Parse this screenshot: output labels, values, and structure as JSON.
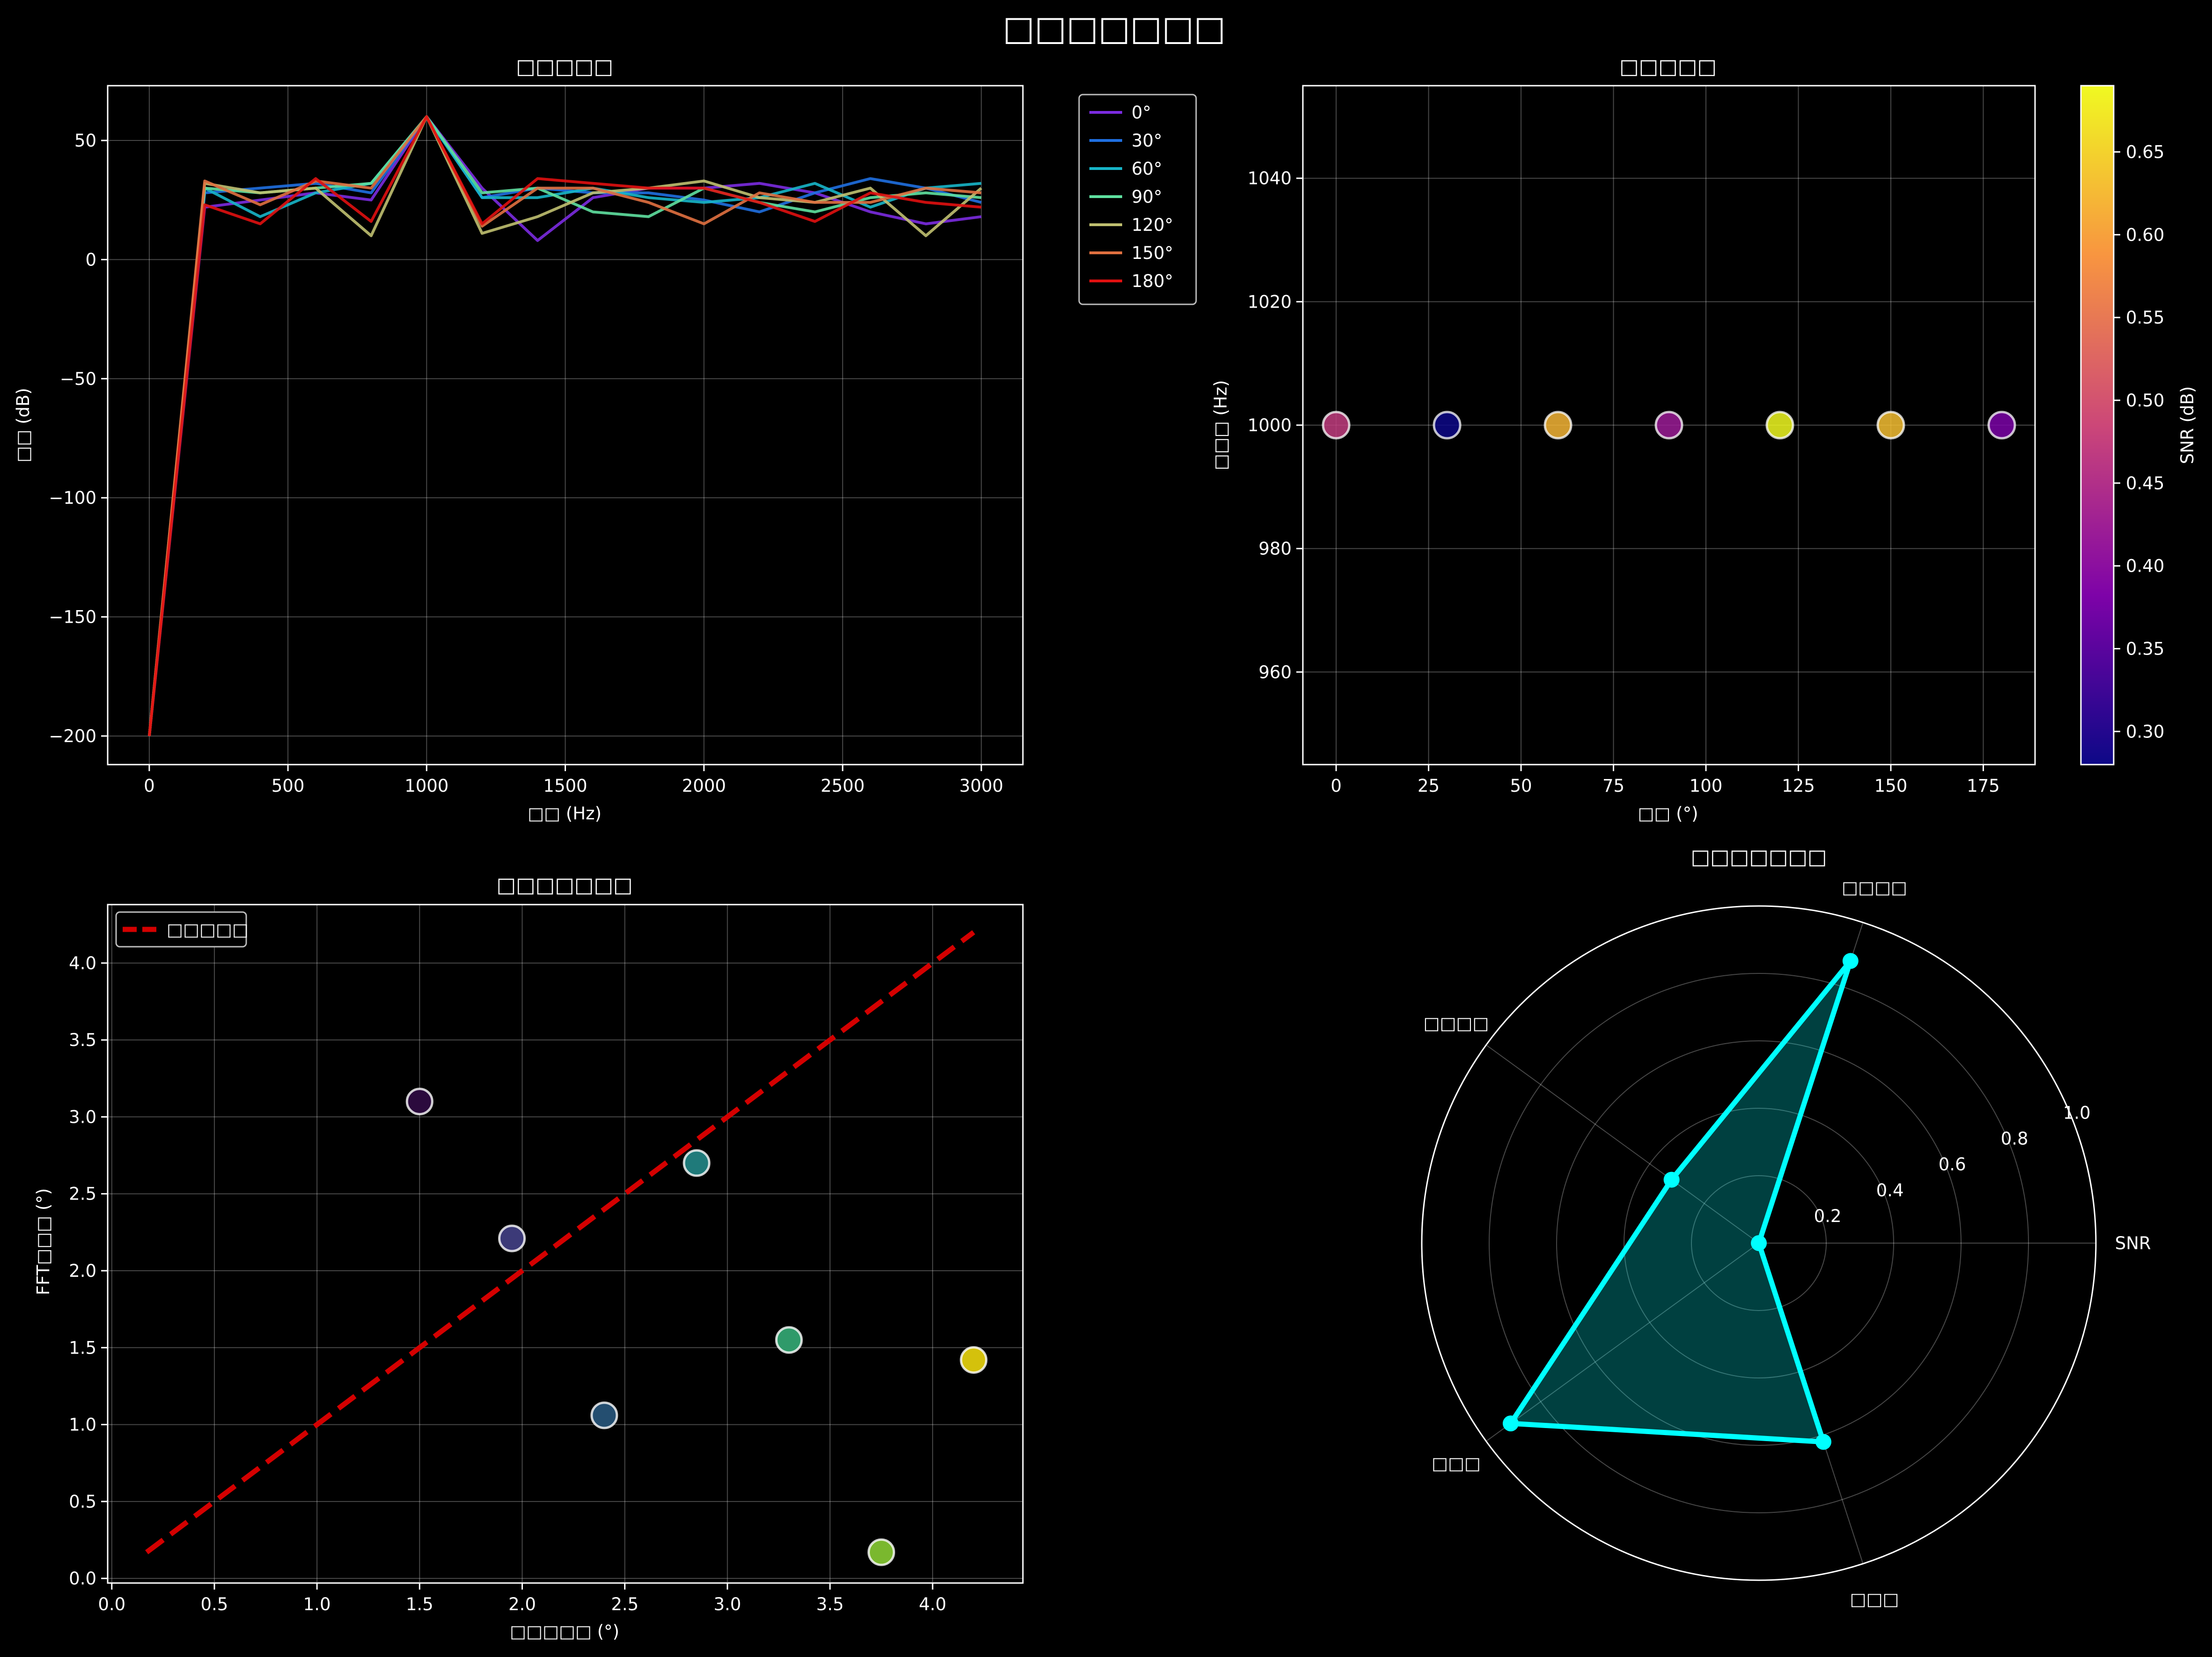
{
  "figure": {
    "suptitle": "□□□□□□□",
    "colors": {
      "background": "#000000",
      "text": "#ffffff",
      "grid": "#ffffff"
    }
  },
  "chart_data": [
    {
      "id": "spectrum",
      "type": "line",
      "title": "□□□□□",
      "xlabel": "□□ (Hz)",
      "ylabel": "□□ (dB)",
      "xlim": [
        -150,
        3150
      ],
      "ylim": [
        -212,
        73
      ],
      "xticks": [
        0,
        500,
        1000,
        1500,
        2000,
        2500,
        3000
      ],
      "yticks": [
        -200,
        -150,
        -100,
        -50,
        0,
        50
      ],
      "grid": true,
      "legend_position": "outside-upper-right",
      "x": [
        0,
        200,
        400,
        600,
        800,
        1000,
        1200,
        1400,
        1600,
        1800,
        2000,
        2200,
        2400,
        2600,
        2800,
        3000
      ],
      "series": [
        {
          "name": "0°",
          "color": "#7b2be0",
          "values": [
            -200,
            22,
            25,
            28,
            25,
            60,
            30,
            8,
            26,
            30,
            30,
            32,
            28,
            20,
            15,
            18
          ]
        },
        {
          "name": "30°",
          "color": "#1f6fe0",
          "values": [
            -200,
            28,
            30,
            32,
            28,
            60,
            26,
            30,
            28,
            28,
            25,
            20,
            28,
            34,
            30,
            24
          ]
        },
        {
          "name": "60°",
          "color": "#17b5c8",
          "values": [
            -200,
            30,
            18,
            28,
            32,
            60,
            26,
            26,
            30,
            26,
            24,
            26,
            32,
            22,
            30,
            32
          ]
        },
        {
          "name": "90°",
          "color": "#5fe0a0",
          "values": [
            -200,
            30,
            28,
            30,
            32,
            60,
            28,
            30,
            20,
            18,
            30,
            24,
            20,
            26,
            28,
            26
          ]
        },
        {
          "name": "120°",
          "color": "#c0c070",
          "values": [
            -200,
            32,
            28,
            30,
            10,
            60,
            11,
            18,
            28,
            30,
            33,
            26,
            24,
            30,
            10,
            30
          ]
        },
        {
          "name": "150°",
          "color": "#e07040",
          "values": [
            -200,
            33,
            23,
            33,
            30,
            60,
            14,
            30,
            30,
            24,
            15,
            28,
            24,
            24,
            30,
            28
          ]
        },
        {
          "name": "180°",
          "color": "#e01010",
          "values": [
            -200,
            23,
            15,
            34,
            16,
            60,
            15,
            34,
            32,
            30,
            30,
            24,
            16,
            28,
            24,
            22
          ]
        }
      ]
    },
    {
      "id": "scatter-angle",
      "type": "scatter",
      "title": "□□□□□",
      "xlabel": "□□ (°)",
      "ylabel": "□□□ (Hz)",
      "xlim": [
        -9,
        189
      ],
      "ylim": [
        945,
        1055
      ],
      "xticks": [
        0,
        25,
        50,
        75,
        100,
        125,
        150,
        175
      ],
      "yticks": [
        960,
        980,
        1000,
        1020,
        1040
      ],
      "grid": true,
      "colorbar": {
        "label": "SNR (dB)",
        "min": 0.28,
        "max": 0.69,
        "ticks": [
          0.3,
          0.35,
          0.4,
          0.45,
          0.5,
          0.55,
          0.6,
          0.65
        ]
      },
      "points": [
        {
          "x": 0,
          "y": 1000,
          "snr": 0.47
        },
        {
          "x": 30,
          "y": 1000,
          "snr": 0.28
        },
        {
          "x": 60,
          "y": 1000,
          "snr": 0.62
        },
        {
          "x": 90,
          "y": 1000,
          "snr": 0.42
        },
        {
          "x": 120,
          "y": 1000,
          "snr": 0.69
        },
        {
          "x": 150,
          "y": 1000,
          "snr": 0.63
        },
        {
          "x": 180,
          "y": 1000,
          "snr": 0.38
        }
      ]
    },
    {
      "id": "phase-compare",
      "type": "scatter",
      "title": "□□□□□□□",
      "xlabel": "□□□□□ (°)",
      "ylabel": "FFT□□□ (°)",
      "xlim": [
        -0.02,
        4.44
      ],
      "ylim": [
        -0.03,
        4.38
      ],
      "xticks": [
        0.0,
        0.5,
        1.0,
        1.5,
        2.0,
        2.5,
        3.0,
        3.5,
        4.0
      ],
      "yticks": [
        0.0,
        0.5,
        1.0,
        1.5,
        2.0,
        2.5,
        3.0,
        3.5,
        4.0
      ],
      "grid": true,
      "legend_position": "upper-left",
      "reference_line": {
        "name": "□□□□□",
        "color": "#d40000",
        "x": [
          0.17,
          4.2
        ],
        "y": [
          0.17,
          4.2
        ]
      },
      "points": [
        {
          "x": 1.5,
          "y": 3.1,
          "color": "#2b0a3d"
        },
        {
          "x": 1.95,
          "y": 2.21,
          "color": "#3c3a78"
        },
        {
          "x": 2.4,
          "y": 1.06,
          "color": "#244e70"
        },
        {
          "x": 2.85,
          "y": 2.7,
          "color": "#1f7a7a"
        },
        {
          "x": 3.3,
          "y": 1.55,
          "color": "#2f9a6a"
        },
        {
          "x": 3.75,
          "y": 0.17,
          "color": "#7ab82e"
        },
        {
          "x": 4.2,
          "y": 1.42,
          "color": "#d4c10c"
        }
      ]
    },
    {
      "id": "radar",
      "type": "radar",
      "title": "□□□□□□□",
      "rmax": 1.0,
      "rticks": [
        0.2,
        0.4,
        0.6,
        0.8,
        1.0
      ],
      "color": "#00ffff",
      "categories": [
        "SNR",
        "□□□□",
        "□□□□",
        "□□□",
        "□□□"
      ],
      "values": [
        0.0,
        0.88,
        0.32,
        0.91,
        0.62
      ]
    }
  ]
}
